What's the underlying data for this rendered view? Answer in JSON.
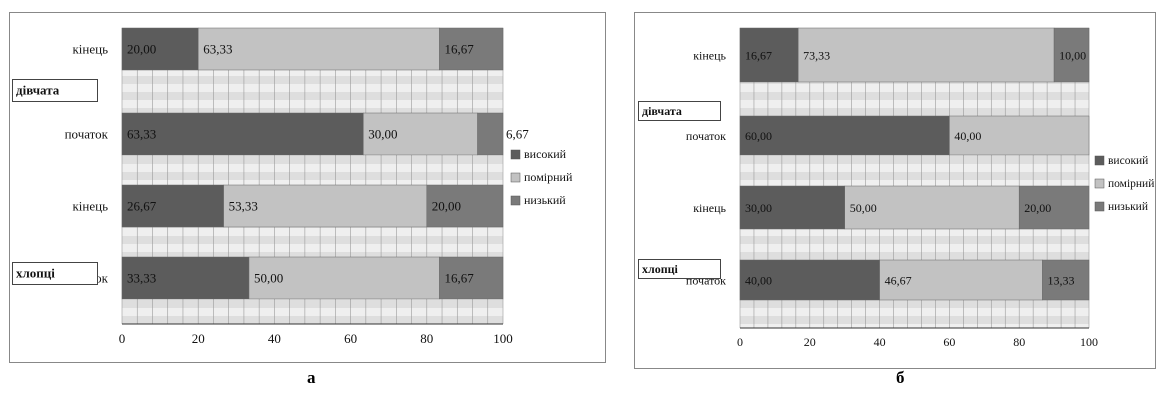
{
  "panels": [
    {
      "caption": "а",
      "chart_data": {
        "type": "bar",
        "stacked": true,
        "orientation": "horizontal",
        "categories": [
          "кінець",
          "початок",
          "кінець",
          "початок"
        ],
        "groups": [
          {
            "label": "дівчата",
            "categories": [
              "кінець",
              "початок"
            ]
          },
          {
            "label": "хлопці",
            "categories": [
              "кінець",
              "початок"
            ]
          }
        ],
        "series": [
          {
            "name": "високий",
            "color": "#5c5c5c",
            "values": [
              20.0,
              63.33,
              26.67,
              33.33
            ],
            "labels": [
              "20,00",
              "63,33",
              "26,67",
              "33,33"
            ]
          },
          {
            "name": "помірний",
            "color": "#c2c2c2",
            "values": [
              63.33,
              30.0,
              53.33,
              50.0
            ],
            "labels": [
              "63,33",
              "30,00",
              "53,33",
              "50,00"
            ]
          },
          {
            "name": "низький",
            "color": "#7a7a7a",
            "values": [
              16.67,
              6.67,
              20.0,
              16.67
            ],
            "labels": [
              "16,67",
              "6,67",
              "20,00",
              "16,67"
            ]
          }
        ],
        "xlim": [
          0,
          100
        ],
        "xticks": [
          0,
          20,
          40,
          60,
          80,
          100
        ],
        "grid": true,
        "legend": "right"
      }
    },
    {
      "caption": "б",
      "chart_data": {
        "type": "bar",
        "stacked": true,
        "orientation": "horizontal",
        "categories": [
          "кінець",
          "початок",
          "кінець",
          "початок"
        ],
        "groups": [
          {
            "label": "дівчата",
            "categories": [
              "кінець",
              "початок"
            ]
          },
          {
            "label": "хлопці",
            "categories": [
              "кінець",
              "початок"
            ]
          }
        ],
        "series": [
          {
            "name": "високий",
            "color": "#5c5c5c",
            "values": [
              16.67,
              60.0,
              30.0,
              40.0
            ],
            "labels": [
              "16,67",
              "60,00",
              "30,00",
              "40,00"
            ]
          },
          {
            "name": "помірний",
            "color": "#c2c2c2",
            "values": [
              73.33,
              40.0,
              50.0,
              46.67
            ],
            "labels": [
              "73,33",
              "40,00",
              "50,00",
              "46,67"
            ]
          },
          {
            "name": "низький",
            "color": "#7a7a7a",
            "values": [
              10.0,
              0,
              20.0,
              13.33
            ],
            "labels": [
              "10,00",
              "",
              "20,00",
              "13,33"
            ]
          }
        ],
        "xlim": [
          0,
          100
        ],
        "xticks": [
          0,
          20,
          40,
          60,
          80,
          100
        ],
        "grid": true,
        "legend": "right"
      }
    }
  ]
}
